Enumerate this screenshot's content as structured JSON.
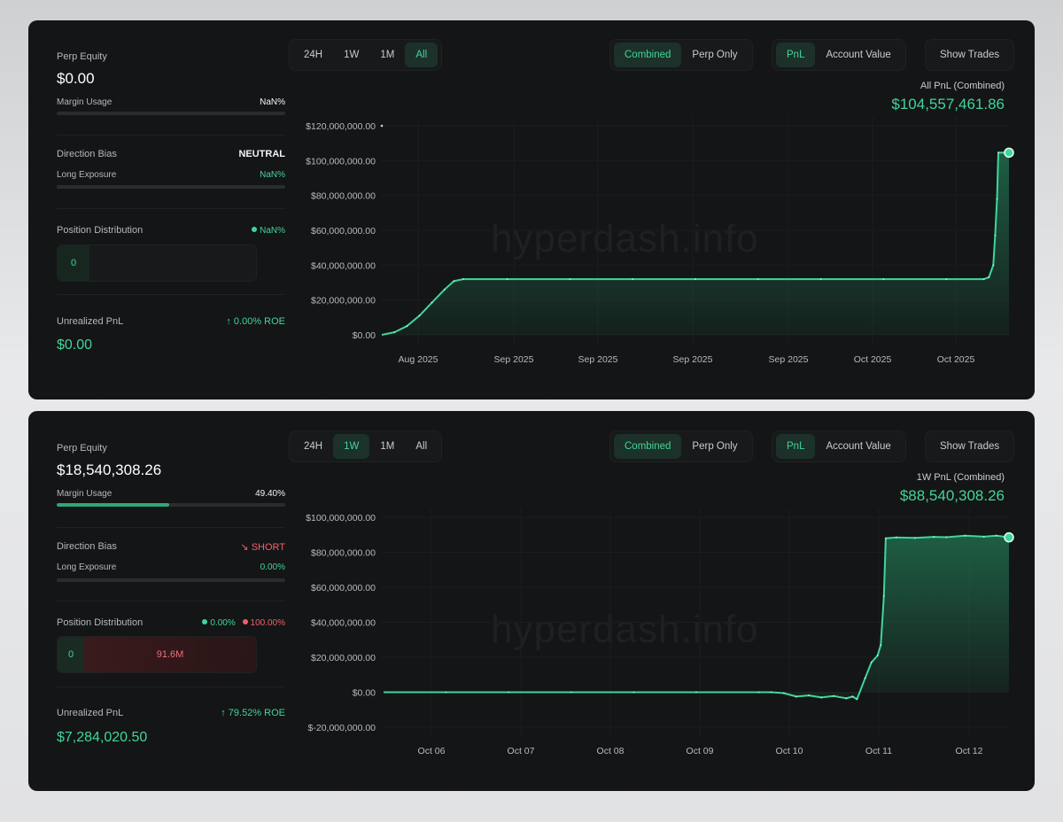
{
  "panels": [
    {
      "perp_equity_label": "Perp Equity",
      "perp_equity_value": "$0.00",
      "margin_usage_label": "Margin Usage",
      "margin_usage_value": "NaN%",
      "margin_usage_fraction": 0,
      "direction_bias_label": "Direction Bias",
      "direction_bias_value": "NEUTRAL",
      "long_exposure_label": "Long Exposure",
      "long_exposure_value": "NaN%",
      "long_exposure_fraction": 0,
      "position_distribution_label": "Position Distribution",
      "pd_long_pct": "NaN%",
      "pd_long_amount": "0",
      "unrealized_pnl_label": "Unrealized PnL",
      "roe": "0.00% ROE",
      "unrealized_pnl_value": "$0.00",
      "timeframes": [
        "24H",
        "1W",
        "1M",
        "All"
      ],
      "active_timeframe": "All",
      "modes": [
        "Combined",
        "Perp Only"
      ],
      "active_mode": "Combined",
      "metrics": [
        "PnL",
        "Account Value"
      ],
      "active_metric": "PnL",
      "show_trades_label": "Show Trades",
      "pnl_label": "All PnL (Combined)",
      "pnl_value": "$104,557,461.86",
      "watermark": "hyperdash.info"
    },
    {
      "perp_equity_label": "Perp Equity",
      "perp_equity_value": "$18,540,308.26",
      "margin_usage_label": "Margin Usage",
      "margin_usage_value": "49.40%",
      "margin_usage_fraction": 0.494,
      "direction_bias_label": "Direction Bias",
      "direction_bias_value": "SHORT",
      "long_exposure_label": "Long Exposure",
      "long_exposure_value": "0.00%",
      "long_exposure_fraction": 0,
      "position_distribution_label": "Position Distribution",
      "pd_long_pct": "0.00%",
      "pd_short_pct": "100.00%",
      "pd_long_amount": "0",
      "pd_short_amount": "91.6M",
      "unrealized_pnl_label": "Unrealized PnL",
      "roe": "79.52% ROE",
      "unrealized_pnl_value": "$7,284,020.50",
      "timeframes": [
        "24H",
        "1W",
        "1M",
        "All"
      ],
      "active_timeframe": "1W",
      "modes": [
        "Combined",
        "Perp Only"
      ],
      "active_mode": "Combined",
      "metrics": [
        "PnL",
        "Account Value"
      ],
      "active_metric": "PnL",
      "show_trades_label": "Show Trades",
      "pnl_label": "1W PnL (Combined)",
      "pnl_value": "$88,540,308.26",
      "watermark": "hyperdash.info"
    }
  ],
  "chart_data": [
    {
      "type": "area",
      "title": "All PnL (Combined)",
      "y_ticks": [
        "$120,000,000.00",
        "$100,000,000.00",
        "$80,000,000.00",
        "$60,000,000.00",
        "$40,000,000.00",
        "$20,000,000.00",
        "$0.00"
      ],
      "ylim": [
        0,
        120000000
      ],
      "x_ticks": [
        "Aug 2025",
        "Sep 2025",
        "Sep 2025",
        "Sep 2025",
        "Sep 2025",
        "Oct 2025",
        "Oct 2025"
      ],
      "series": [
        {
          "points": [
            [
              0,
              0
            ],
            [
              0.02,
              1500000
            ],
            [
              0.04,
              5000000
            ],
            [
              0.06,
              11000000
            ],
            [
              0.08,
              18500000
            ],
            [
              0.1,
              26000000
            ],
            [
              0.115,
              30800000
            ],
            [
              0.13,
              32000000
            ],
            [
              0.2,
              32000000
            ],
            [
              0.3,
              32000000
            ],
            [
              0.4,
              32000000
            ],
            [
              0.5,
              32000000
            ],
            [
              0.6,
              32000000
            ],
            [
              0.7,
              32000000
            ],
            [
              0.8,
              32000000
            ],
            [
              0.9,
              32000000
            ],
            [
              0.96,
              32000000
            ],
            [
              0.968,
              33000000
            ],
            [
              0.975,
              40000000
            ],
            [
              0.978,
              57000000
            ],
            [
              0.981,
              78000000
            ],
            [
              0.983,
              104600000
            ],
            [
              1.0,
              104557461.86
            ]
          ]
        }
      ],
      "grid": true,
      "colors": {
        "line": "#3fd69a",
        "fill": "#1f6b4c"
      }
    },
    {
      "type": "area",
      "title": "1W PnL (Combined)",
      "y_ticks": [
        "$100,000,000.00",
        "$80,000,000.00",
        "$60,000,000.00",
        "$40,000,000.00",
        "$20,000,000.00",
        "$0.00",
        "$-20,000,000.00"
      ],
      "ylim": [
        -20000000,
        100000000
      ],
      "x_ticks": [
        "Oct 06",
        "Oct 07",
        "Oct 08",
        "Oct 09",
        "Oct 10",
        "Oct 11",
        "Oct 12"
      ],
      "series": [
        {
          "points": [
            [
              0,
              0
            ],
            [
              0.1,
              0
            ],
            [
              0.2,
              0
            ],
            [
              0.3,
              0
            ],
            [
              0.4,
              0
            ],
            [
              0.5,
              0
            ],
            [
              0.6,
              0
            ],
            [
              0.62,
              0
            ],
            [
              0.64,
              -500000
            ],
            [
              0.66,
              -2500000
            ],
            [
              0.68,
              -1800000
            ],
            [
              0.7,
              -3000000
            ],
            [
              0.72,
              -2200000
            ],
            [
              0.74,
              -3500000
            ],
            [
              0.75,
              -2500000
            ],
            [
              0.757,
              -4000000
            ],
            [
              0.77,
              8000000
            ],
            [
              0.78,
              17000000
            ],
            [
              0.79,
              21000000
            ],
            [
              0.795,
              27000000
            ],
            [
              0.8,
              55000000
            ],
            [
              0.803,
              88000000
            ],
            [
              0.82,
              88500000
            ],
            [
              0.85,
              88200000
            ],
            [
              0.88,
              88800000
            ],
            [
              0.9,
              88600000
            ],
            [
              0.93,
              89500000
            ],
            [
              0.96,
              88900000
            ],
            [
              0.98,
              89500000
            ],
            [
              1.0,
              88540308.26
            ]
          ]
        }
      ],
      "grid": true,
      "colors": {
        "line": "#3fd69a",
        "fill": "#1f6b4c"
      }
    }
  ]
}
